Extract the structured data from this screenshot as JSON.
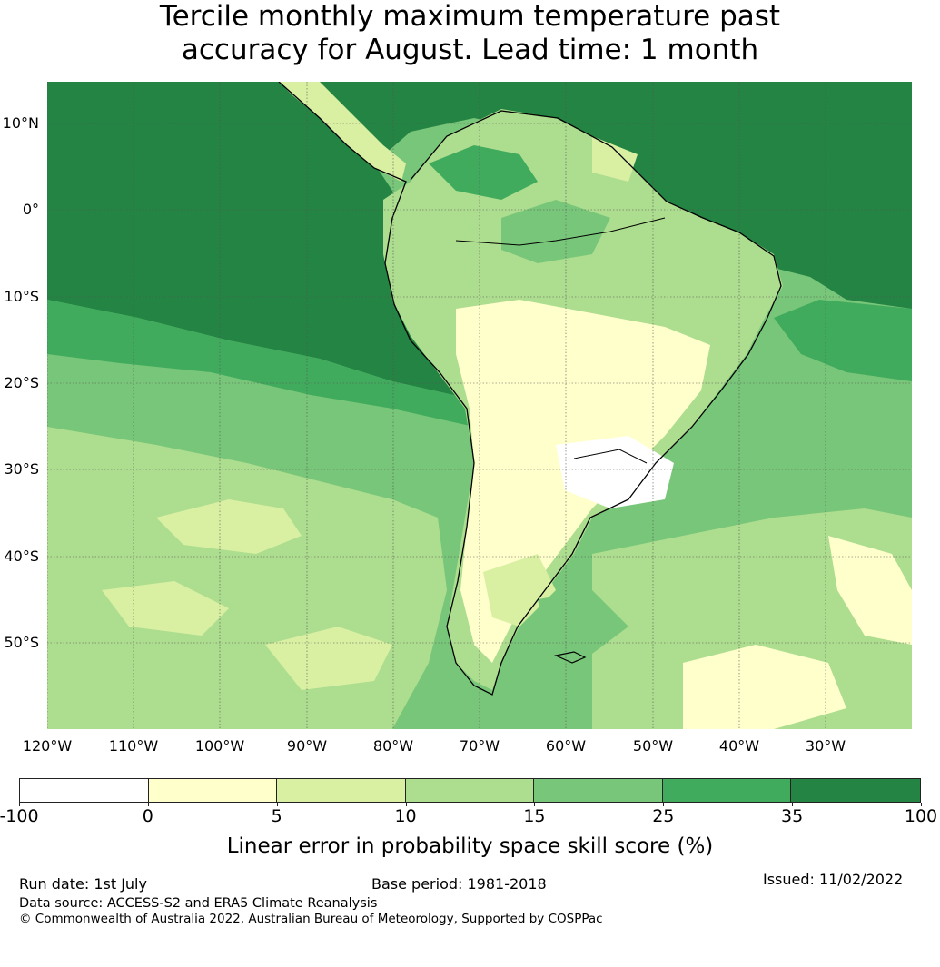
{
  "title_line1": "Tercile monthly maximum temperature past",
  "title_line2": "accuracy for August. Lead time: 1 month",
  "lat_labels": [
    "10°N",
    "0°",
    "10°S",
    "20°S",
    "30°S",
    "40°S",
    "50°S"
  ],
  "lon_labels": [
    "120°W",
    "110°W",
    "100°W",
    "90°W",
    "80°W",
    "70°W",
    "60°W",
    "50°W",
    "40°W",
    "30°W"
  ],
  "colorbar": {
    "tick_labels": [
      "-100",
      "0",
      "5",
      "10",
      "15",
      "25",
      "35",
      "100"
    ],
    "colors": [
      "#ffffff",
      "#ffffcc",
      "#d9f0a3",
      "#addd8e",
      "#78c679",
      "#41ab5d",
      "#238443"
    ],
    "label": "Linear error in probability space skill score (%)"
  },
  "footer": {
    "run_date": "Run date: 1st July",
    "base_period": "Base period: 1981-2018",
    "issued": "Issued: 11/02/2022",
    "data_source": "Data source: ACCESS-S2 and ERA5 Climate Reanalysis",
    "copyright": "© Commonwealth of Australia 2022, Australian Bureau of Meteorology, Supported by COSPPac"
  }
}
